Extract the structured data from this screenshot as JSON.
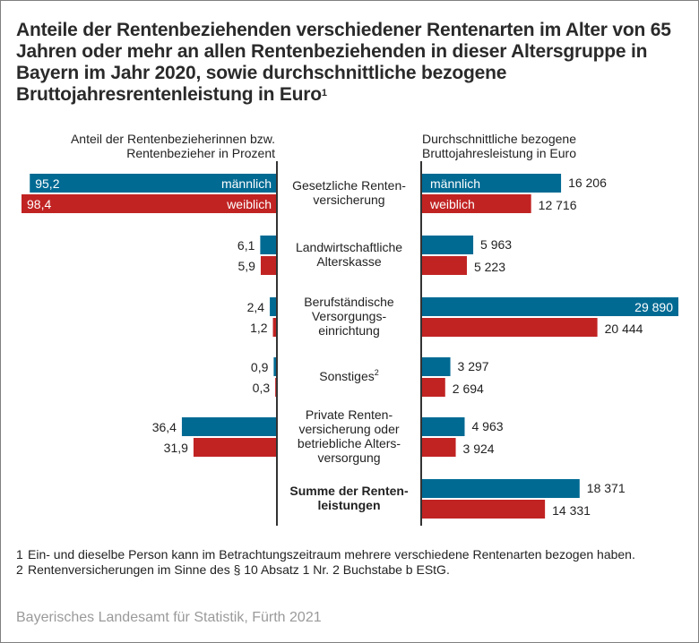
{
  "title": "Anteile der Rentenbeziehenden verschiedener Rentenarten im Alter von 65 Jahren oder mehr an allen Rentenbeziehenden in dieser Altersgruppe in Bayern im Jahr 2020, sowie durchschnittliche bezogene Bruttojahresrentenleistung in Euro",
  "title_footnote_mark": "1",
  "left_header": [
    "Anteil der Rentenbezieherinnen bzw.",
    "Rentenbezieher in Prozent"
  ],
  "right_header": [
    "Durchschnittliche bezogene",
    "Bruttojahresleistung in Euro"
  ],
  "colors": {
    "male": "#006a93",
    "female": "#c12323",
    "axis": "#333333"
  },
  "chart_data": [
    {
      "type": "bar",
      "orientation": "horizontal",
      "direction": "right-to-left",
      "title": "Anteil der Rentenbezieherinnen bzw. Rentenbezieher in Prozent",
      "categories": [
        [
          "Gesetzliche Renten-",
          "versicherung"
        ],
        [
          "Landwirtschaftliche",
          "Alterskasse"
        ],
        [
          "Berufständische",
          "Versorgungs-",
          "einrichtung"
        ],
        [
          "Sonstiges"
        ],
        [
          "Private Renten-",
          "versicherung oder",
          "betriebliche Alters-",
          "versorgung"
        ]
      ],
      "category_footnotes": [
        "",
        "",
        "",
        "2",
        ""
      ],
      "series": [
        {
          "name": "männlich",
          "values": [
            95.2,
            6.1,
            2.4,
            0.9,
            36.4
          ],
          "labels": [
            "95,2",
            "6,1",
            "2,4",
            "0,9",
            "36,4"
          ]
        },
        {
          "name": "weiblich",
          "values": [
            98.4,
            5.9,
            1.2,
            0.3,
            31.9
          ],
          "labels": [
            "98,4",
            "5,9",
            "1,2",
            "0,3",
            "31,9"
          ]
        }
      ],
      "xlim": [
        0,
        100
      ],
      "grid": false,
      "legend": "inside first bar pair"
    },
    {
      "type": "bar",
      "orientation": "horizontal",
      "direction": "left-to-right",
      "title": "Durchschnittliche bezogene Bruttojahresleistung in Euro",
      "categories": [
        [
          "Gesetzliche Renten-",
          "versicherung"
        ],
        [
          "Landwirtschaftliche",
          "Alterskasse"
        ],
        [
          "Berufständische",
          "Versorgungs-",
          "einrichtung"
        ],
        [
          "Sonstiges"
        ],
        [
          "Private Renten-",
          "versicherung oder",
          "betriebliche Alters-",
          "versorgung"
        ],
        [
          "Summe der Renten-",
          "leistungen"
        ]
      ],
      "series": [
        {
          "name": "männlich",
          "values": [
            16206,
            5963,
            29890,
            3297,
            4963,
            18371
          ],
          "labels": [
            "16 206",
            "5 963",
            "29 890",
            "3 297",
            "4 963",
            "18 371"
          ]
        },
        {
          "name": "weiblich",
          "values": [
            12716,
            5223,
            20444,
            2694,
            3924,
            14331
          ],
          "labels": [
            "12 716",
            "5 223",
            "20 444",
            "2 694",
            "3 924",
            "14 331"
          ]
        }
      ],
      "xlim": [
        0,
        30000
      ],
      "grid": false,
      "legend": "inside first bar pair"
    }
  ],
  "legend": {
    "male": "männlich",
    "female": "weiblich"
  },
  "footnotes": [
    {
      "num": "1",
      "text": "Ein- und dieselbe Person kann im Betrachtungszeitraum mehrere verschiedene Rentenarten bezogen haben."
    },
    {
      "num": "2",
      "text": "Rentenversicherungen im Sinne des § 10 Absatz 1 Nr. 2 Buchstabe b EStG."
    }
  ],
  "source": "Bayerisches Landesamt für Statistik, Fürth 2021"
}
